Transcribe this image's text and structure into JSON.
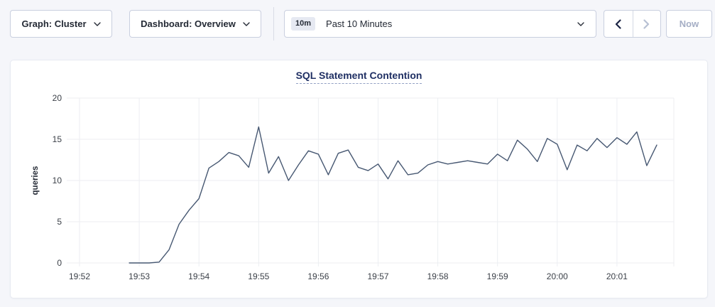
{
  "toolbar": {
    "graph_dropdown": {
      "label": "Graph: Cluster"
    },
    "dashboard_dropdown": {
      "label": "Dashboard: Overview"
    },
    "time_picker": {
      "badge": "10m",
      "label": "Past 10 Minutes"
    },
    "now_button": "Now"
  },
  "chart_data": {
    "type": "line",
    "title": "SQL Statement Contention",
    "ylabel": "queries",
    "ylim": [
      0,
      20
    ],
    "yticks": [
      0,
      5,
      10,
      15,
      20
    ],
    "xticks": [
      "19:52",
      "19:53",
      "19:54",
      "19:55",
      "19:56",
      "19:57",
      "19:58",
      "19:59",
      "20:00",
      "20:01"
    ],
    "grid": true,
    "legend": "none",
    "series": [
      {
        "name": "queries",
        "x": [
          "19:52:50",
          "19:53:00",
          "19:53:10",
          "19:53:20",
          "19:53:30",
          "19:53:40",
          "19:53:50",
          "19:54:00",
          "19:54:10",
          "19:54:20",
          "19:54:30",
          "19:54:40",
          "19:54:50",
          "19:55:00",
          "19:55:10",
          "19:55:20",
          "19:55:30",
          "19:55:40",
          "19:55:50",
          "19:56:00",
          "19:56:10",
          "19:56:20",
          "19:56:30",
          "19:56:40",
          "19:56:50",
          "19:57:00",
          "19:57:10",
          "19:57:20",
          "19:57:30",
          "19:57:40",
          "19:57:50",
          "19:58:00",
          "19:58:10",
          "19:58:20",
          "19:58:30",
          "19:58:40",
          "19:58:50",
          "19:59:00",
          "19:59:10",
          "19:59:20",
          "19:59:30",
          "19:59:40",
          "19:59:50",
          "20:00:00",
          "20:00:10",
          "20:00:20",
          "20:00:30",
          "20:00:40",
          "20:00:50",
          "20:01:00",
          "20:01:10",
          "20:01:20",
          "20:01:30",
          "20:01:40"
        ],
        "values": [
          0,
          0,
          0,
          0.1,
          1.6,
          4.7,
          6.4,
          7.8,
          11.5,
          12.3,
          13.4,
          13.0,
          11.6,
          16.5,
          10.9,
          12.9,
          10.0,
          11.9,
          13.6,
          13.2,
          10.7,
          13.3,
          13.7,
          11.6,
          11.2,
          12.0,
          10.2,
          12.4,
          10.7,
          10.9,
          11.9,
          12.3,
          12.0,
          12.2,
          12.4,
          12.2,
          12.0,
          13.2,
          12.4,
          14.9,
          13.8,
          12.3,
          15.1,
          14.4,
          11.3,
          14.3,
          13.6,
          15.1,
          14.0,
          15.2,
          14.4,
          15.9,
          11.8,
          14.3
        ]
      }
    ],
    "colors": {
      "line": "#475872",
      "grid": "#eceef2",
      "tick_text": "#3b4048",
      "title": "#1f2f63"
    }
  }
}
